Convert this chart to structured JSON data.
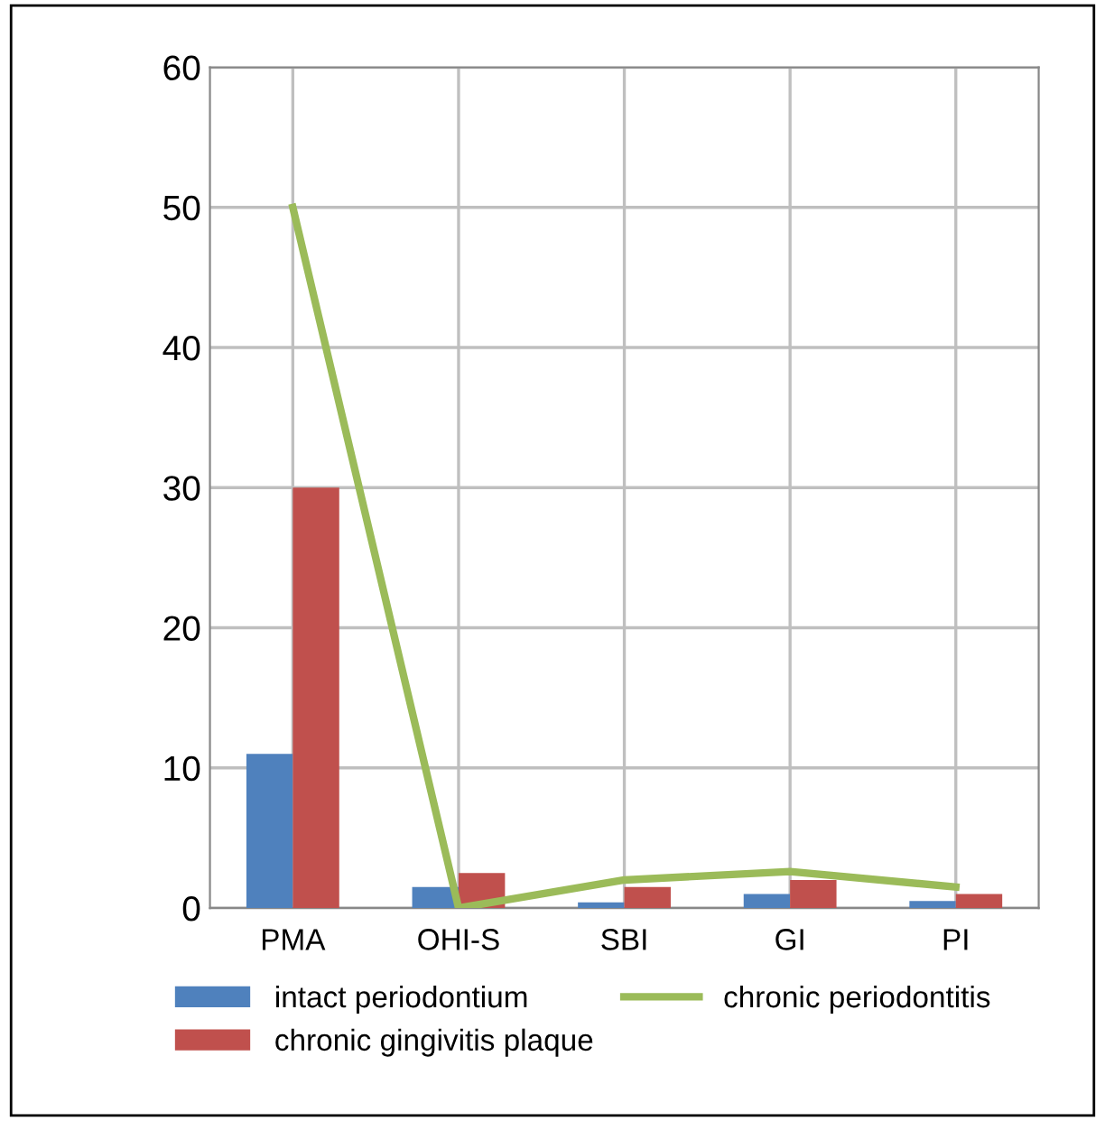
{
  "chart_data": {
    "type": "bar",
    "categories": [
      "PMA",
      "OHI-S",
      "SBI",
      "GI",
      "PI"
    ],
    "series": [
      {
        "name": "intact periodontium",
        "color": "#4f81bd",
        "values": [
          11,
          1.5,
          0.4,
          1.0,
          0.5
        ]
      },
      {
        "name": "chronic gingivitis plaque",
        "color": "#c0504d",
        "values": [
          30,
          2.5,
          1.5,
          2.0,
          1.0
        ]
      },
      {
        "name": "chronic periodontitis",
        "type": "line",
        "color": "#9bbb59",
        "values": [
          50,
          0,
          2.0,
          2.6,
          1.5
        ]
      }
    ],
    "ylim": [
      0,
      60
    ],
    "yticks": [
      0,
      10,
      20,
      30,
      40,
      50,
      60
    ],
    "grid": true,
    "legend": "bottom"
  }
}
